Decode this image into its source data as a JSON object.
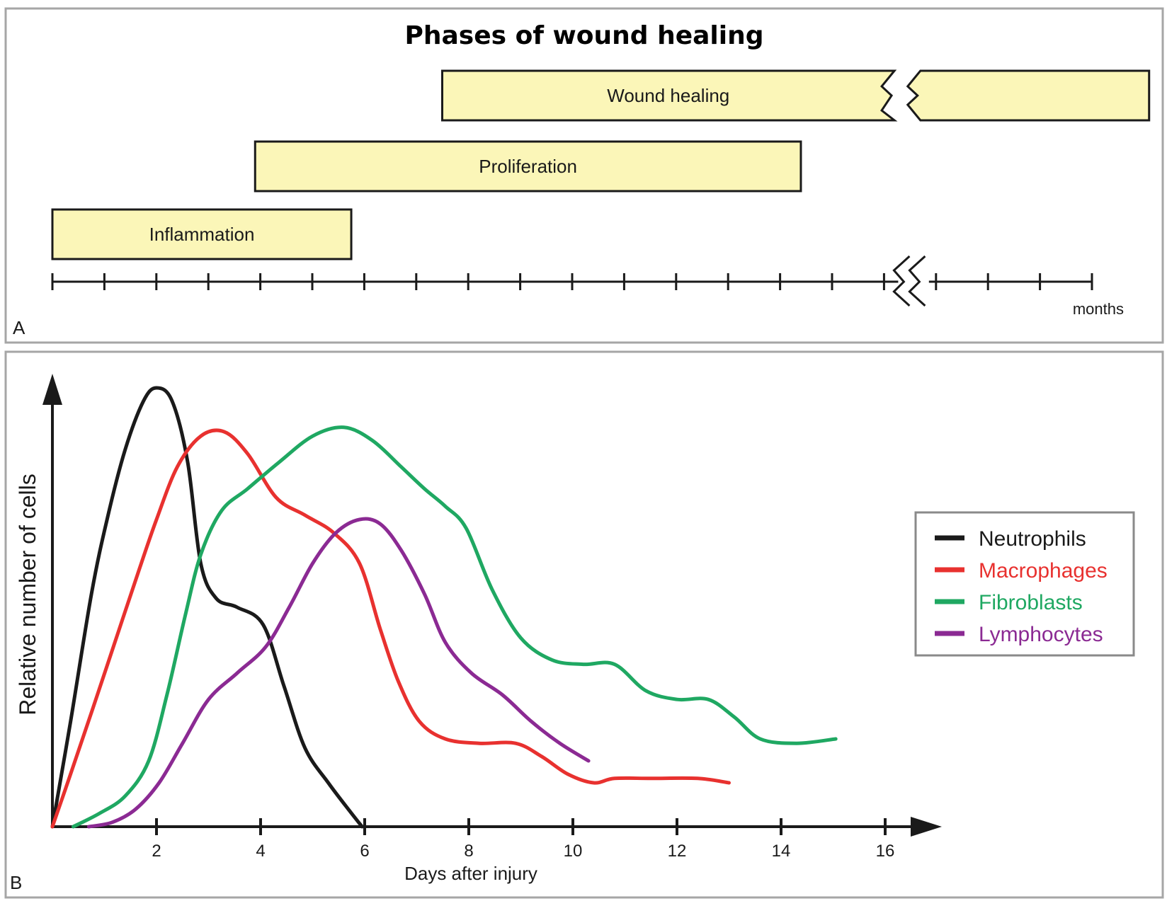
{
  "chart_data": [
    {
      "type": "timeline",
      "panel": "A",
      "title": "Phases of wound healing",
      "axis_unit_label": "months",
      "phases": [
        {
          "name": "Wound healing",
          "start": 7.5,
          "end": 21.1,
          "broken_after": 16.2,
          "resumes_at": 16.7
        },
        {
          "name": "Proliferation",
          "start": 3.9,
          "end": 14.4
        },
        {
          "name": "Inflammation",
          "start": 0.0,
          "end": 5.75
        }
      ],
      "ticks": [
        0,
        1,
        2,
        3,
        4,
        5,
        6,
        7,
        8,
        9,
        10,
        11,
        12,
        13,
        14,
        15,
        16,
        17,
        18,
        19,
        20
      ],
      "axis_break_between": [
        16,
        17
      ]
    },
    {
      "type": "line",
      "panel": "B",
      "xlabel": "Days after injury",
      "ylabel": "Relative number of cells",
      "xlim": [
        0,
        17
      ],
      "ylim": [
        0,
        1
      ],
      "xticks": [
        2,
        4,
        6,
        8,
        10,
        12,
        14,
        16
      ],
      "legend_position": "right",
      "series": [
        {
          "name": "Neutrophils",
          "color": "#1a1a1a",
          "x": [
            0,
            0.35,
            0.75,
            1.05,
            1.4,
            1.75,
            2.0,
            2.3,
            2.6,
            2.85,
            3.15,
            3.55,
            4.05,
            4.45,
            4.85,
            5.3,
            5.75,
            5.95
          ],
          "y": [
            0,
            0.24,
            0.53,
            0.7,
            0.86,
            0.97,
            1.0,
            0.97,
            0.83,
            0.6,
            0.52,
            0.5,
            0.46,
            0.32,
            0.18,
            0.1,
            0.03,
            0
          ]
        },
        {
          "name": "Macrophages",
          "color": "#e8312f",
          "x": [
            0,
            0.35,
            0.75,
            1.2,
            1.65,
            2.0,
            2.4,
            2.85,
            3.3,
            3.75,
            4.3,
            4.85,
            5.4,
            5.9,
            6.3,
            6.65,
            7.05,
            7.55,
            8.2,
            8.9,
            9.4,
            9.9,
            10.4,
            10.8,
            11.5,
            12.4,
            13.0
          ],
          "y": [
            0,
            0.12,
            0.26,
            0.42,
            0.58,
            0.7,
            0.82,
            0.89,
            0.9,
            0.85,
            0.75,
            0.71,
            0.67,
            0.6,
            0.45,
            0.33,
            0.24,
            0.2,
            0.19,
            0.19,
            0.16,
            0.12,
            0.1,
            0.11,
            0.11,
            0.11,
            0.1
          ]
        },
        {
          "name": "Fibroblasts",
          "color": "#1fa862",
          "x": [
            0.4,
            0.9,
            1.4,
            1.85,
            2.2,
            2.55,
            2.85,
            3.25,
            3.75,
            4.35,
            5.0,
            5.6,
            6.15,
            6.7,
            7.15,
            7.55,
            7.95,
            8.45,
            9.0,
            9.6,
            10.2,
            10.8,
            11.4,
            12.0,
            12.6,
            13.1,
            13.6,
            14.3,
            15.05
          ],
          "y": [
            0,
            0.03,
            0.07,
            0.15,
            0.3,
            0.48,
            0.62,
            0.72,
            0.77,
            0.83,
            0.89,
            0.91,
            0.88,
            0.82,
            0.77,
            0.73,
            0.68,
            0.54,
            0.43,
            0.38,
            0.37,
            0.37,
            0.31,
            0.29,
            0.29,
            0.25,
            0.2,
            0.19,
            0.2
          ]
        },
        {
          "name": "Lymphocytes",
          "color": "#8b2a93",
          "x": [
            0.7,
            1.15,
            1.6,
            2.05,
            2.5,
            3.0,
            3.55,
            4.1,
            4.55,
            5.0,
            5.45,
            5.9,
            6.3,
            6.7,
            7.15,
            7.55,
            8.05,
            8.65,
            9.2,
            9.75,
            10.3
          ],
          "y": [
            0,
            0.01,
            0.04,
            0.1,
            0.19,
            0.29,
            0.35,
            0.41,
            0.5,
            0.6,
            0.67,
            0.7,
            0.69,
            0.63,
            0.53,
            0.42,
            0.35,
            0.3,
            0.24,
            0.19,
            0.15
          ]
        }
      ]
    }
  ]
}
